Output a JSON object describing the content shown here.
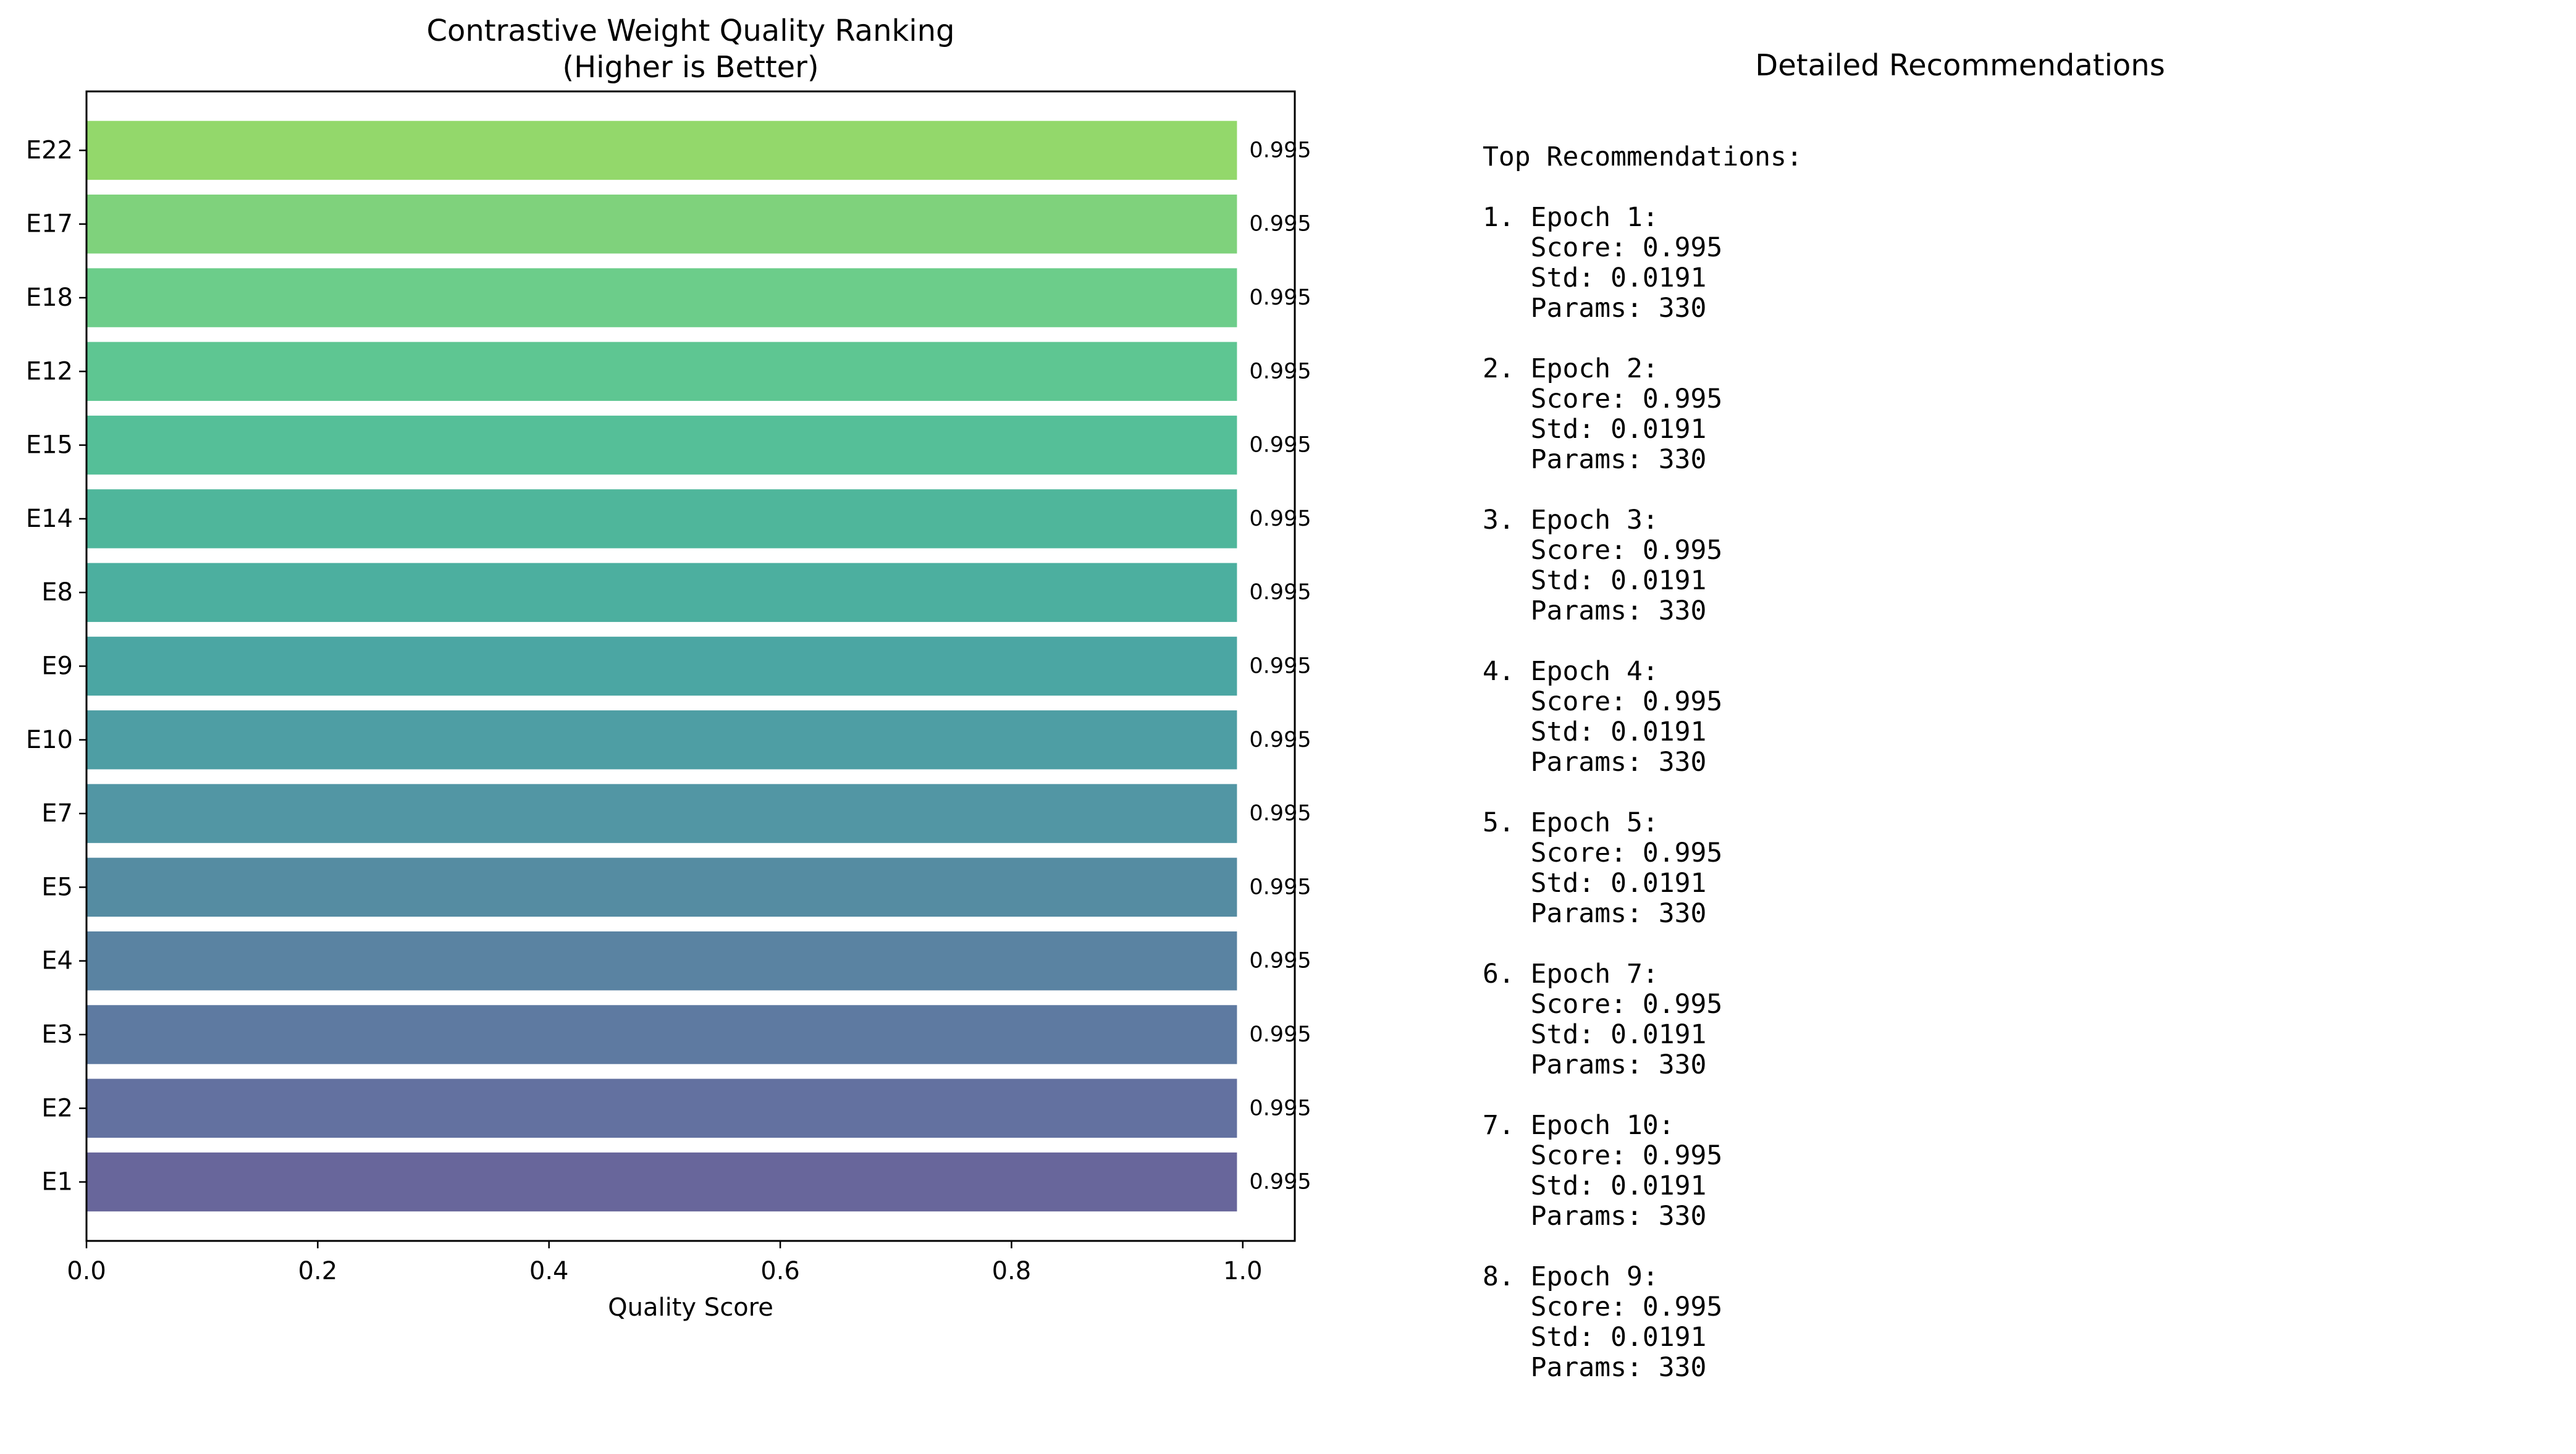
{
  "chart_data": [
    {
      "type": "bar",
      "orientation": "horizontal",
      "title": "Contrastive Weight Quality Ranking\n(Higher is Better)",
      "xlabel": "Quality Score",
      "ylabel": "",
      "categories": [
        "E22",
        "E17",
        "E18",
        "E12",
        "E15",
        "E14",
        "E8",
        "E9",
        "E10",
        "E7",
        "E5",
        "E4",
        "E3",
        "E2",
        "E1"
      ],
      "values": [
        0.995,
        0.995,
        0.995,
        0.995,
        0.995,
        0.995,
        0.995,
        0.995,
        0.995,
        0.995,
        0.995,
        0.995,
        0.995,
        0.995,
        0.995
      ],
      "value_labels": [
        "0.995",
        "0.995",
        "0.995",
        "0.995",
        "0.995",
        "0.995",
        "0.995",
        "0.995",
        "0.995",
        "0.995",
        "0.995",
        "0.995",
        "0.995",
        "0.995",
        "0.995"
      ],
      "colors": [
        "#93d86b",
        "#7fd27c",
        "#6ccd8a",
        "#5ec692",
        "#55bf98",
        "#4fb69b",
        "#4caf9f",
        "#4ba6a3",
        "#4e9ea4",
        "#5296a4",
        "#558ca2",
        "#5a83a2",
        "#5e7aa1",
        "#6371a0",
        "#68669b"
      ],
      "xlim": [
        0,
        1.045
      ],
      "xticks": [
        0.0,
        0.2,
        0.4,
        0.6,
        0.8,
        1.0
      ],
      "xtick_labels": [
        "0.0",
        "0.2",
        "0.4",
        "0.6",
        "0.8",
        "1.0"
      ],
      "grid": false
    },
    {
      "type": "table",
      "title": "Detailed Recommendations",
      "header": "Top Recommendations:",
      "entries": [
        {
          "rank": "1",
          "epoch": "1",
          "score": "0.995",
          "std": "0.0191",
          "params": "330"
        },
        {
          "rank": "2",
          "epoch": "2",
          "score": "0.995",
          "std": "0.0191",
          "params": "330"
        },
        {
          "rank": "3",
          "epoch": "3",
          "score": "0.995",
          "std": "0.0191",
          "params": "330"
        },
        {
          "rank": "4",
          "epoch": "4",
          "score": "0.995",
          "std": "0.0191",
          "params": "330"
        },
        {
          "rank": "5",
          "epoch": "5",
          "score": "0.995",
          "std": "0.0191",
          "params": "330"
        },
        {
          "rank": "6",
          "epoch": "7",
          "score": "0.995",
          "std": "0.0191",
          "params": "330"
        },
        {
          "rank": "7",
          "epoch": "10",
          "score": "0.995",
          "std": "0.0191",
          "params": "330"
        },
        {
          "rank": "8",
          "epoch": "9",
          "score": "0.995",
          "std": "0.0191",
          "params": "330"
        }
      ]
    }
  ]
}
